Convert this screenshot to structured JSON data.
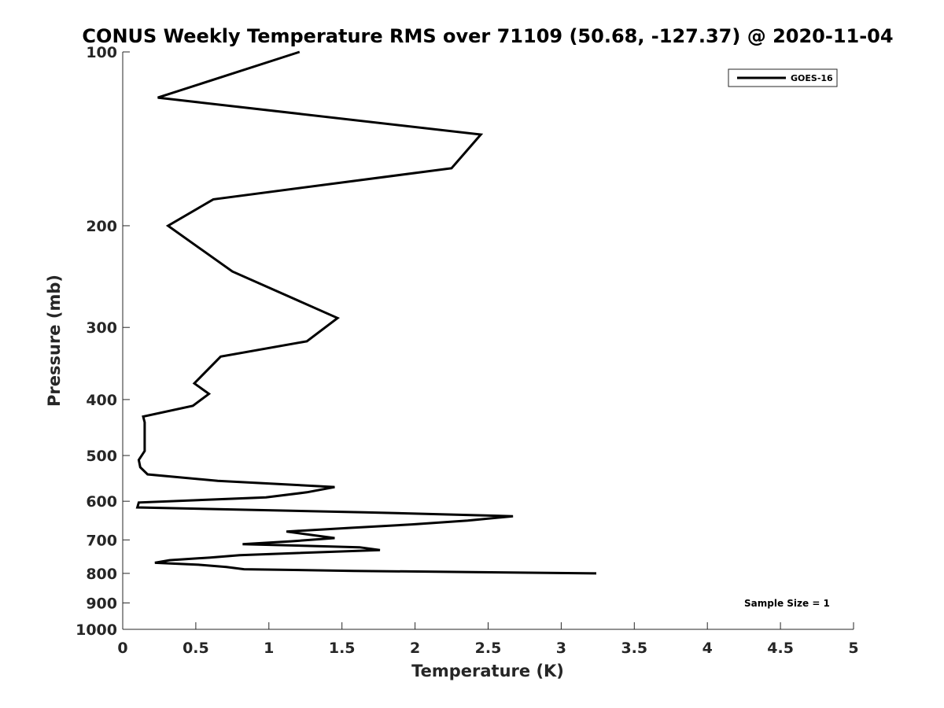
{
  "chart_data": {
    "type": "line",
    "title": "CONUS Weekly Temperature RMS over 71109 (50.68, -127.37) @ 2020-11-04",
    "xlabel": "Temperature (K)",
    "ylabel": "Pressure (mb)",
    "xlim": [
      0,
      5
    ],
    "ylim": [
      1000,
      100
    ],
    "yscale": "log",
    "grid": false,
    "legend_position": "top-right",
    "x_ticks": [
      "0",
      "0.5",
      "1",
      "1.5",
      "2",
      "2.5",
      "3",
      "3.5",
      "4",
      "4.5",
      "5"
    ],
    "y_ticks": [
      "100",
      "200",
      "300",
      "400",
      "500",
      "600",
      "700",
      "800",
      "900",
      "1000"
    ],
    "annotation": "Sample Size = 1",
    "series": [
      {
        "name": "GOES-16",
        "color": "#000000",
        "points": [
          [
            1.21,
            100
          ],
          [
            0.24,
            120
          ],
          [
            2.45,
            139
          ],
          [
            2.25,
            159
          ],
          [
            0.62,
            180
          ],
          [
            0.31,
            200
          ],
          [
            0.75,
            240
          ],
          [
            1.47,
            289
          ],
          [
            1.26,
            317
          ],
          [
            0.67,
            337
          ],
          [
            0.49,
            375
          ],
          [
            0.59,
            391
          ],
          [
            0.48,
            410
          ],
          [
            0.14,
            428
          ],
          [
            0.15,
            438
          ],
          [
            0.15,
            491
          ],
          [
            0.11,
            509
          ],
          [
            0.12,
            524
          ],
          [
            0.17,
            539
          ],
          [
            0.65,
            553
          ],
          [
            1.45,
            567
          ],
          [
            1.26,
            579
          ],
          [
            0.98,
            591
          ],
          [
            0.11,
            603
          ],
          [
            0.1,
            615
          ],
          [
            1.65,
            627
          ],
          [
            2.67,
            637
          ],
          [
            2.36,
            648
          ],
          [
            1.98,
            658
          ],
          [
            1.57,
            667
          ],
          [
            1.12,
            677
          ],
          [
            1.45,
            695
          ],
          [
            1.15,
            704
          ],
          [
            0.82,
            712
          ],
          [
            1.62,
            721
          ],
          [
            1.76,
            729
          ],
          [
            0.8,
            744
          ],
          [
            0.6,
            751
          ],
          [
            0.32,
            759
          ],
          [
            0.22,
            767
          ],
          [
            0.52,
            773
          ],
          [
            0.71,
            780
          ],
          [
            0.83,
            787
          ],
          [
            1.58,
            792
          ],
          [
            3.24,
            800
          ]
        ]
      }
    ]
  }
}
